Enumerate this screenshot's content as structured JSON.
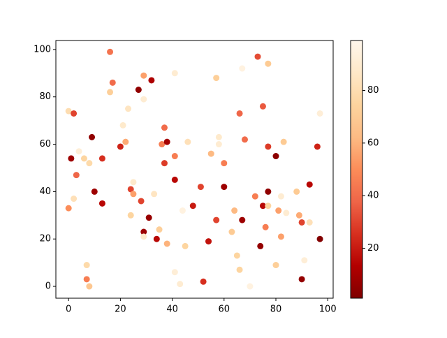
{
  "chart_data": {
    "type": "scatter",
    "colormap": "OrRd_r",
    "x": [
      0,
      1,
      2,
      0,
      2,
      3,
      4,
      6,
      8,
      7,
      7,
      8,
      9,
      10,
      13,
      13,
      16,
      16,
      17,
      20,
      21,
      22,
      23,
      24,
      25,
      25,
      24,
      27,
      28,
      29,
      29,
      29,
      29,
      31,
      32,
      33,
      34,
      35,
      36,
      37,
      37,
      38,
      38,
      41,
      41,
      41,
      41,
      43,
      44,
      45,
      46,
      48,
      51,
      52,
      54,
      55,
      57,
      57,
      58,
      58,
      60,
      60,
      63,
      64,
      65,
      66,
      66,
      67,
      67,
      68,
      70,
      72,
      73,
      74,
      75,
      75,
      76,
      77,
      77,
      77,
      77,
      80,
      80,
      81,
      82,
      82,
      83,
      84,
      88,
      89,
      90,
      90,
      91,
      93,
      93,
      96,
      97,
      97
    ],
    "y": [
      74,
      54,
      73,
      33,
      37,
      47,
      57,
      54,
      52,
      9,
      3,
      0,
      63,
      40,
      54,
      35,
      99,
      82,
      86,
      59,
      68,
      61,
      75,
      41,
      44,
      39,
      30,
      83,
      36,
      89,
      79,
      23,
      21,
      29,
      87,
      39,
      20,
      24,
      60,
      67,
      52,
      61,
      18,
      90,
      55,
      45,
      6,
      1,
      32,
      17,
      61,
      34,
      42,
      2,
      19,
      56,
      88,
      28,
      63,
      60,
      52,
      42,
      23,
      32,
      13,
      73,
      7,
      92,
      28,
      62,
      0,
      38,
      97,
      17,
      76,
      34,
      25,
      94,
      59,
      40,
      34,
      55,
      9,
      32,
      38,
      21,
      61,
      31,
      40,
      30,
      27,
      3,
      11,
      43,
      27,
      59,
      73,
      20
    ],
    "c": [
      80,
      8,
      30,
      50,
      82,
      38,
      92,
      75,
      78,
      78,
      45,
      68,
      5,
      8,
      25,
      15,
      42,
      72,
      40,
      22,
      88,
      58,
      85,
      30,
      88,
      55,
      75,
      5,
      30,
      55,
      90,
      8,
      88,
      7,
      12,
      85,
      15,
      72,
      45,
      40,
      28,
      10,
      60,
      90,
      45,
      15,
      92,
      90,
      95,
      75,
      82,
      20,
      30,
      25,
      18,
      62,
      72,
      30,
      88,
      90,
      45,
      8,
      70,
      62,
      75,
      38,
      75,
      95,
      8,
      40,
      95,
      45,
      32,
      6,
      35,
      15,
      45,
      70,
      28,
      5,
      75,
      4,
      72,
      55,
      90,
      55,
      70,
      90,
      70,
      58,
      30,
      6,
      92,
      15,
      82,
      22,
      92,
      2
    ],
    "xlim": [
      -4.9,
      102.1
    ],
    "ylim": [
      -5,
      103.8
    ],
    "xticks": [
      0,
      20,
      40,
      60,
      80,
      100
    ],
    "yticks": [
      0,
      20,
      40,
      60,
      80,
      100
    ],
    "clim": [
      1,
      99
    ],
    "cticks": [
      20,
      40,
      60,
      80
    ]
  }
}
